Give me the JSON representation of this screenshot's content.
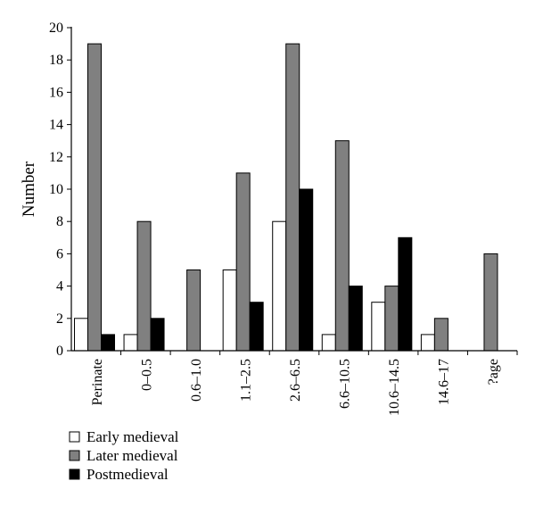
{
  "chart_data": {
    "type": "bar",
    "title": "",
    "xlabel": "",
    "ylabel": "Number",
    "ylim": [
      0,
      20
    ],
    "yticks": [
      0,
      2,
      4,
      6,
      8,
      10,
      12,
      14,
      16,
      18,
      20
    ],
    "grid": false,
    "legend_position": "bottom-left",
    "categories": [
      "Perinate",
      "0–0.5",
      "0.6–1.0",
      "1.1–2.5",
      "2.6–6.5",
      "6.6–10.5",
      "10.6–14.5",
      "14.6–17",
      "?age"
    ],
    "series": [
      {
        "name": "Early medieval",
        "color": "#ffffff",
        "values": [
          2,
          1,
          0,
          5,
          8,
          1,
          3,
          1,
          0
        ]
      },
      {
        "name": "Later medieval",
        "color": "#808080",
        "values": [
          19,
          8,
          5,
          11,
          19,
          13,
          4,
          2,
          6
        ]
      },
      {
        "name": "Postmedieval",
        "color": "#000000",
        "values": [
          1,
          2,
          0,
          3,
          10,
          4,
          7,
          0,
          0
        ]
      }
    ]
  }
}
